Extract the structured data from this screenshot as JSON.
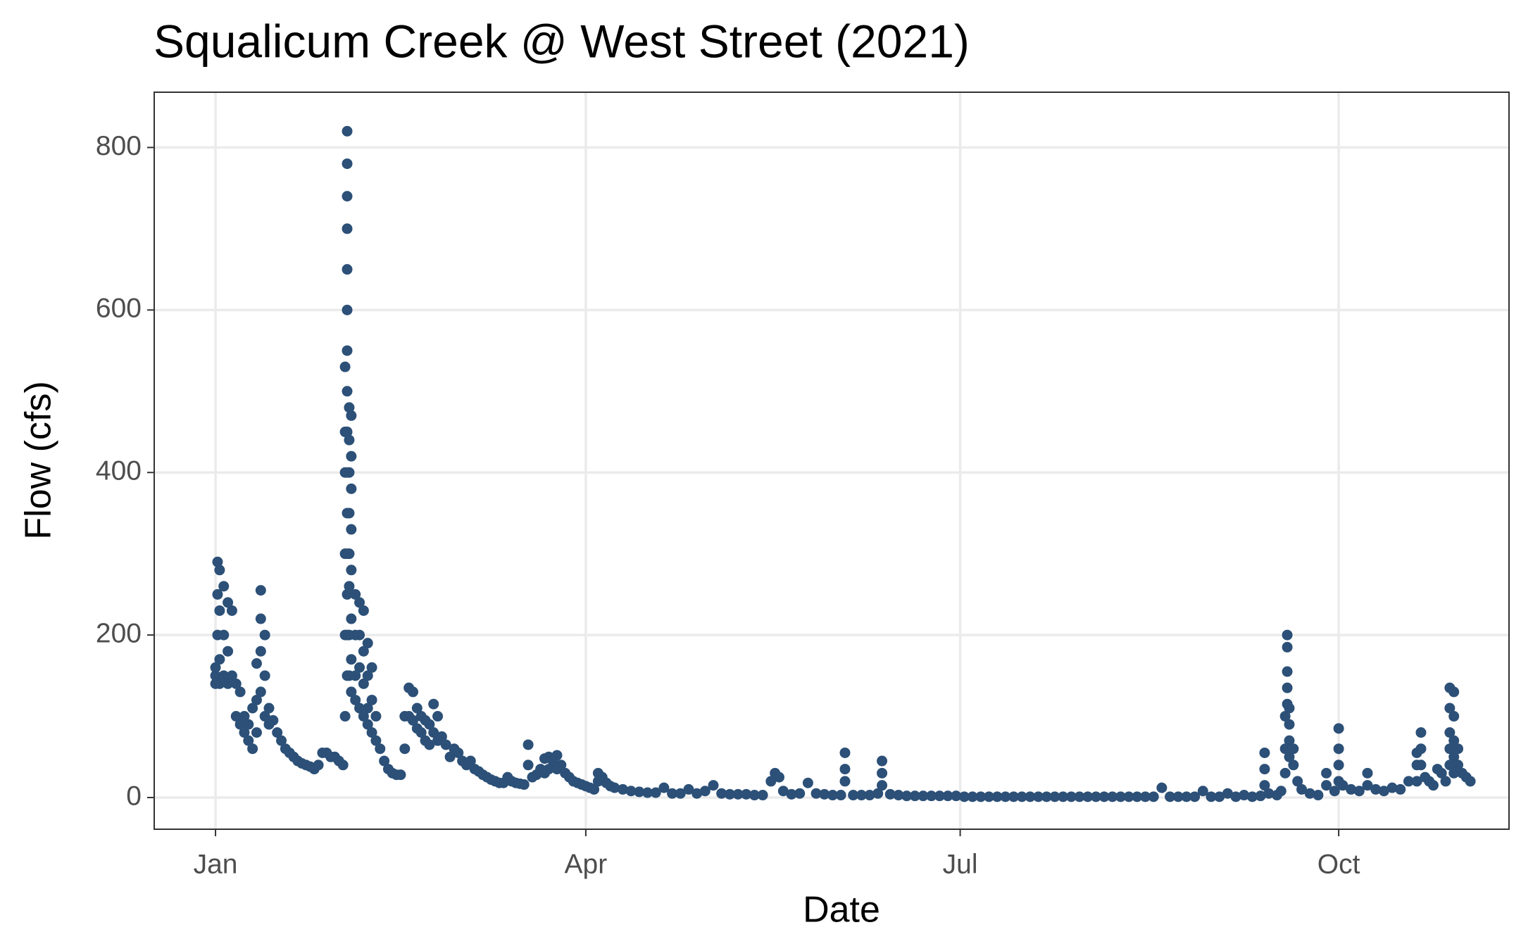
{
  "chart_data": {
    "type": "scatter",
    "title": "Squalicum Creek @ West Street (2021)",
    "x_label": "Date",
    "y_label": "Flow (cfs)",
    "color": "#2c5077",
    "grid": true,
    "xlim": [
      -14.9,
      314.4
    ],
    "ylim": [
      -39,
      868
    ],
    "xticks": [
      {
        "value": 0,
        "label": "Jan"
      },
      {
        "value": 90,
        "label": "Apr"
      },
      {
        "value": 181,
        "label": "Jul"
      },
      {
        "value": 273,
        "label": "Oct"
      }
    ],
    "yticks": [
      0,
      200,
      400,
      600,
      800
    ],
    "x": [
      0,
      0,
      0,
      0.5,
      0.5,
      0.5,
      1,
      1,
      1,
      1,
      2,
      2,
      2,
      3,
      3,
      3,
      4,
      4,
      5,
      5,
      6,
      6,
      7,
      7,
      8,
      8,
      9,
      9,
      10,
      10,
      10,
      11,
      11,
      11,
      11,
      12,
      12,
      12,
      13,
      13,
      14,
      15,
      16,
      17,
      18,
      19,
      20,
      21,
      22,
      23,
      24,
      25,
      26,
      27,
      28,
      29,
      30,
      31,
      31.5,
      31.5,
      31.5,
      31.5,
      31.5,
      31.5,
      32,
      32,
      32,
      32,
      32,
      32,
      32,
      32,
      32,
      32,
      32,
      32,
      32,
      32,
      32,
      32.5,
      32.5,
      32.5,
      32.5,
      32.5,
      32.5,
      32.5,
      32.5,
      33,
      33,
      33,
      33,
      33,
      33,
      33,
      33,
      34,
      34,
      34,
      34,
      35,
      35,
      35,
      35,
      36,
      36,
      36,
      36,
      37,
      37,
      37,
      37,
      38,
      38,
      38,
      39,
      39,
      40,
      41,
      42,
      43,
      44,
      45,
      46,
      46,
      47,
      47,
      48,
      48,
      49,
      49,
      50,
      50,
      51,
      51,
      52,
      52,
      53,
      53,
      54,
      54,
      55,
      56,
      57,
      58,
      59,
      60,
      61,
      62,
      63,
      64,
      65,
      66,
      67,
      68,
      69,
      70,
      71,
      72,
      73,
      74,
      75,
      76,
      76,
      77,
      78,
      79,
      80,
      80,
      81,
      81,
      82,
      83,
      83,
      84,
      85,
      86,
      87,
      88,
      89,
      90,
      91,
      92,
      93,
      93,
      94,
      95,
      96,
      97,
      99,
      101,
      103,
      105,
      107,
      109,
      111,
      113,
      115,
      117,
      119,
      121,
      123,
      125,
      127,
      129,
      131,
      133,
      135,
      136,
      137,
      138,
      140,
      142,
      144,
      146,
      148,
      150,
      152,
      153,
      153,
      153,
      155,
      157,
      159,
      161,
      162,
      162,
      162,
      164,
      166,
      168,
      170,
      172,
      174,
      176,
      178,
      180,
      182,
      184,
      186,
      188,
      190,
      192,
      194,
      196,
      198,
      200,
      202,
      204,
      206,
      208,
      210,
      212,
      214,
      216,
      218,
      220,
      222,
      224,
      226,
      228,
      230,
      232,
      234,
      236,
      238,
      240,
      242,
      244,
      246,
      248,
      250,
      252,
      254,
      255,
      255,
      255,
      256,
      258,
      259,
      260,
      260,
      260,
      260.5,
      260.5,
      260.5,
      260.5,
      260.5,
      261,
      261,
      261,
      261,
      262,
      262,
      263,
      264,
      266,
      268,
      270,
      270,
      272,
      273,
      273,
      273,
      273,
      274,
      276,
      278,
      280,
      280,
      282,
      284,
      286,
      288,
      290,
      292,
      292,
      292,
      293,
      293,
      293,
      294,
      295,
      296,
      297,
      298,
      299,
      300,
      300,
      300,
      300,
      300,
      301,
      301,
      301,
      301,
      301,
      302,
      302,
      303,
      304,
      305
    ],
    "values": [
      150,
      140,
      160,
      290,
      250,
      200,
      280,
      230,
      170,
      140,
      260,
      200,
      150,
      240,
      180,
      140,
      230,
      150,
      140,
      100,
      130,
      90,
      100,
      80,
      90,
      70,
      110,
      60,
      165,
      120,
      80,
      255,
      220,
      180,
      130,
      200,
      150,
      100,
      110,
      90,
      95,
      80,
      70,
      60,
      55,
      50,
      45,
      42,
      40,
      38,
      35,
      40,
      55,
      55,
      50,
      50,
      45,
      40,
      100,
      200,
      300,
      400,
      450,
      530,
      820,
      780,
      740,
      700,
      650,
      600,
      550,
      500,
      450,
      400,
      350,
      300,
      250,
      200,
      150,
      480,
      440,
      400,
      350,
      300,
      260,
      200,
      150,
      470,
      420,
      380,
      330,
      280,
      220,
      170,
      130,
      250,
      200,
      150,
      120,
      240,
      200,
      160,
      110,
      230,
      180,
      140,
      100,
      190,
      150,
      110,
      90,
      160,
      120,
      80,
      100,
      70,
      60,
      45,
      35,
      30,
      28,
      28,
      100,
      60,
      135,
      100,
      130,
      95,
      110,
      85,
      100,
      80,
      95,
      70,
      90,
      65,
      115,
      80,
      100,
      70,
      75,
      65,
      50,
      60,
      55,
      45,
      40,
      45,
      35,
      32,
      28,
      25,
      22,
      20,
      18,
      18,
      25,
      20,
      18,
      17,
      16,
      65,
      40,
      25,
      28,
      35,
      48,
      30,
      50,
      35,
      45,
      52,
      35,
      40,
      30,
      25,
      20,
      18,
      16,
      14,
      12,
      10,
      30,
      20,
      25,
      18,
      14,
      12,
      10,
      8,
      7,
      6,
      6,
      12,
      5,
      5,
      10,
      5,
      8,
      15,
      5,
      4,
      4,
      4,
      3,
      3,
      20,
      30,
      25,
      8,
      4,
      5,
      18,
      5,
      4,
      3,
      3,
      55,
      35,
      20,
      3,
      3,
      3,
      5,
      45,
      30,
      15,
      4,
      3,
      2,
      2,
      2,
      2,
      2,
      2,
      2,
      1,
      1,
      1,
      1,
      1,
      1,
      1,
      1,
      1,
      1,
      1,
      1,
      1,
      1,
      1,
      1,
      1,
      1,
      1,
      1,
      1,
      1,
      1,
      1,
      12,
      1,
      1,
      1,
      1,
      8,
      1,
      1,
      5,
      1,
      3,
      1,
      2,
      55,
      35,
      15,
      5,
      3,
      8,
      100,
      60,
      30,
      200,
      185,
      155,
      135,
      115,
      110,
      90,
      70,
      50,
      60,
      40,
      20,
      10,
      5,
      3,
      30,
      15,
      8,
      85,
      60,
      40,
      20,
      15,
      10,
      8,
      30,
      15,
      10,
      8,
      12,
      10,
      20,
      55,
      40,
      20,
      80,
      60,
      40,
      25,
      20,
      15,
      35,
      30,
      20,
      135,
      110,
      80,
      60,
      40,
      130,
      100,
      70,
      50,
      30,
      60,
      40,
      30,
      25,
      20
    ]
  }
}
